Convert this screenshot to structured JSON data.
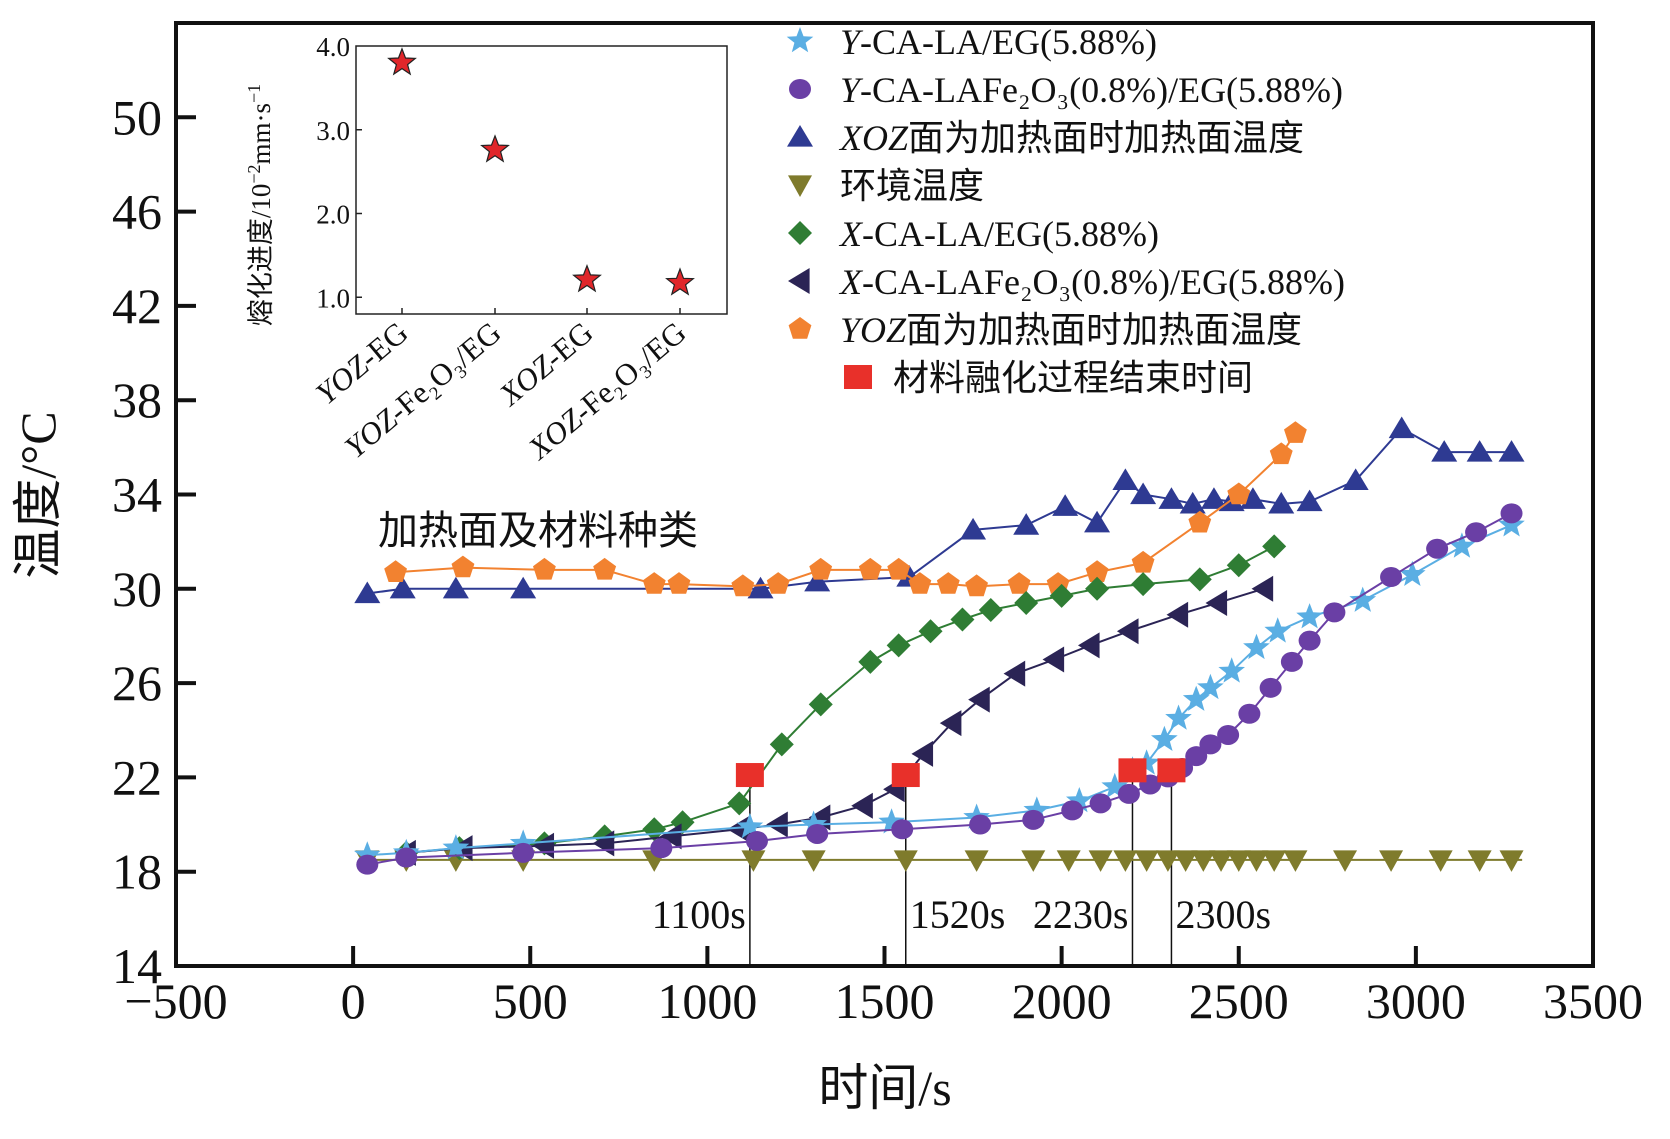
{
  "chart_data": [
    {
      "type": "line",
      "title": "",
      "xlabel": "时间/s",
      "ylabel": "温度/°C",
      "xlim": [
        -500,
        3500
      ],
      "ylim": [
        14,
        54
      ],
      "xticks": [
        -500,
        0,
        500,
        1000,
        1500,
        2000,
        2500,
        3000,
        3500
      ],
      "xtick_labels": [
        "−500",
        "0",
        "500",
        "1000",
        "1500",
        "2000",
        "2500",
        "3000",
        "3500"
      ],
      "yticks": [
        14,
        18,
        22,
        26,
        30,
        34,
        38,
        42,
        46,
        50
      ],
      "ytick_labels": [
        "14",
        "18",
        "22",
        "26",
        "30",
        "34",
        "38",
        "42",
        "46",
        "50"
      ],
      "grid": false,
      "legend_position": "top-right",
      "series": [
        {
          "name": "Y-CA-LA/EG(5.88%)",
          "name_italic": "Y",
          "name_rest": "-CA-LA/EG(5.88%)",
          "marker": "star",
          "color": "#5aaee3",
          "x": [
            40,
            150,
            290,
            480,
            1120,
            1300,
            1520,
            1760,
            1930,
            2050,
            2150,
            2200,
            2240,
            2290,
            2330,
            2380,
            2420,
            2480,
            2550,
            2610,
            2700,
            2850,
            2990,
            3130,
            3270
          ],
          "y": [
            18.7,
            18.8,
            19.0,
            19.2,
            19.9,
            20.0,
            20.1,
            20.3,
            20.6,
            21.0,
            21.6,
            22.3,
            22.6,
            23.6,
            24.5,
            25.3,
            25.8,
            26.5,
            27.5,
            28.2,
            28.8,
            29.5,
            30.6,
            31.8,
            32.7
          ]
        },
        {
          "name": "Y-CA-LAFe2O3(0.8%)/EG(5.88%)",
          "name_italic": "Y",
          "name_rest": "-CA-LAFe₂O₃(0.8%)/EG(5.88%)",
          "marker": "circle",
          "color": "#6a3fa5",
          "x": [
            40,
            150,
            480,
            870,
            1140,
            1310,
            1550,
            1770,
            1920,
            2030,
            2110,
            2190,
            2250,
            2300,
            2340,
            2380,
            2420,
            2470,
            2530,
            2590,
            2650,
            2700,
            2770,
            2930,
            3060,
            3170,
            3270
          ],
          "y": [
            18.3,
            18.6,
            18.8,
            19.0,
            19.3,
            19.6,
            19.8,
            20.0,
            20.2,
            20.6,
            20.9,
            21.3,
            21.7,
            22.0,
            22.4,
            22.9,
            23.4,
            23.8,
            24.7,
            25.8,
            26.9,
            27.8,
            29.0,
            30.5,
            31.7,
            32.4,
            33.2
          ]
        },
        {
          "name": "XOZ面为加热面时加热面温度",
          "name_italic": "XOZ",
          "name_rest": "面为加热面时加热面温度",
          "marker": "triangle-up",
          "color": "#2e3a92",
          "x": [
            40,
            140,
            290,
            480,
            1150,
            1310,
            1570,
            1750,
            1900,
            2010,
            2100,
            2180,
            2230,
            2310,
            2370,
            2430,
            2480,
            2540,
            2620,
            2700,
            2830,
            2960,
            3080,
            3180,
            3270
          ],
          "y": [
            29.8,
            30.0,
            30.0,
            30.0,
            30.0,
            30.3,
            30.5,
            32.5,
            32.7,
            33.5,
            32.8,
            34.6,
            34.0,
            33.8,
            33.6,
            33.8,
            33.7,
            33.8,
            33.6,
            33.7,
            34.6,
            36.8,
            35.8,
            35.8,
            35.8
          ]
        },
        {
          "name": "环境温度",
          "name_italic": "",
          "name_rest": "环境温度",
          "marker": "triangle-down",
          "color": "#7f7b2c",
          "x": [
            40,
            150,
            290,
            480,
            850,
            1130,
            1300,
            1560,
            1760,
            1920,
            2020,
            2110,
            2180,
            2240,
            2300,
            2350,
            2400,
            2450,
            2500,
            2550,
            2600,
            2660,
            2800,
            2930,
            3070,
            3180,
            3270
          ],
          "y": [
            18.5,
            18.5,
            18.5,
            18.5,
            18.5,
            18.5,
            18.5,
            18.5,
            18.5,
            18.5,
            18.5,
            18.5,
            18.5,
            18.5,
            18.5,
            18.5,
            18.5,
            18.5,
            18.5,
            18.5,
            18.5,
            18.5,
            18.5,
            18.5,
            18.5,
            18.5,
            18.5
          ]
        },
        {
          "name": "X-CA-LA/EG(5.88%)",
          "name_italic": "X",
          "name_rest": "-CA-LA/EG(5.88%)",
          "marker": "diamond",
          "color": "#2f7d34",
          "x": [
            150,
            300,
            540,
            710,
            850,
            930,
            1090,
            1210,
            1320,
            1460,
            1540,
            1630,
            1720,
            1800,
            1900,
            2000,
            2100,
            2230,
            2390,
            2500,
            2600
          ],
          "y": [
            18.8,
            19.0,
            19.2,
            19.5,
            19.8,
            20.1,
            20.9,
            23.4,
            25.1,
            26.9,
            27.6,
            28.2,
            28.7,
            29.1,
            29.4,
            29.7,
            30.0,
            30.2,
            30.4,
            31.0,
            31.8
          ]
        },
        {
          "name": "X-CA-LAFe2O3(0.8%)/EG(5.88%)",
          "name_italic": "X",
          "name_rest": "-CA-LAFe₂O₃(0.8%)/EG(5.88%)",
          "marker": "triangle-left",
          "color": "#2b2455",
          "x": [
            150,
            310,
            540,
            710,
            900,
            1090,
            1200,
            1320,
            1440,
            1530,
            1610,
            1690,
            1770,
            1870,
            1980,
            2080,
            2190,
            2330,
            2440,
            2570
          ],
          "y": [
            18.8,
            19.0,
            19.1,
            19.2,
            19.5,
            19.8,
            20.0,
            20.3,
            20.8,
            21.5,
            23.0,
            24.3,
            25.3,
            26.4,
            27.0,
            27.6,
            28.2,
            28.9,
            29.4,
            30.0
          ]
        }
      ],
      "melt_end_markers": {
        "name": "材料融化过程结束时间",
        "marker": "square",
        "color": "#e8302a",
        "x": [
          1120,
          1560,
          2200,
          2310
        ],
        "y": [
          22.1,
          22.1,
          22.3,
          22.3
        ],
        "labels": [
          "1100s",
          "1520s",
          "2230s",
          "2300s"
        ]
      },
      "annotations": [
        "加热面及材料种类"
      ]
    },
    {
      "type": "scatter",
      "title": "",
      "xlabel": "",
      "ylabel": "熔化进度/10⁻²mm·s⁻¹",
      "ylabel_main": "熔化进度/10",
      "ylabel_sup1": "−2",
      "ylabel_mid": "mm·s",
      "ylabel_sup2": "−1",
      "categories": [
        "YOZ-EG",
        "YOZ-Fe2O3/EG",
        "XOZ-EG",
        "XOZ-Fe2O3/EG"
      ],
      "category_display": [
        {
          "italic": "YOZ",
          "rest": "-EG"
        },
        {
          "italic": "YOZ",
          "rest": "-Fe₂O₃/EG"
        },
        {
          "italic": "XOZ",
          "rest": "-EG"
        },
        {
          "italic": "XOZ",
          "rest": "-Fe₂O₃/EG"
        }
      ],
      "values": [
        3.8,
        2.76,
        1.21,
        1.17
      ],
      "ylim": [
        0.8,
        4.0
      ],
      "yticks": [
        1.0,
        2.0,
        3.0,
        4.0
      ],
      "ytick_labels": [
        "1.0",
        "2.0",
        "3.0",
        "4.0"
      ],
      "marker": "star",
      "color": "#e0262a",
      "grid": false
    }
  ]
}
